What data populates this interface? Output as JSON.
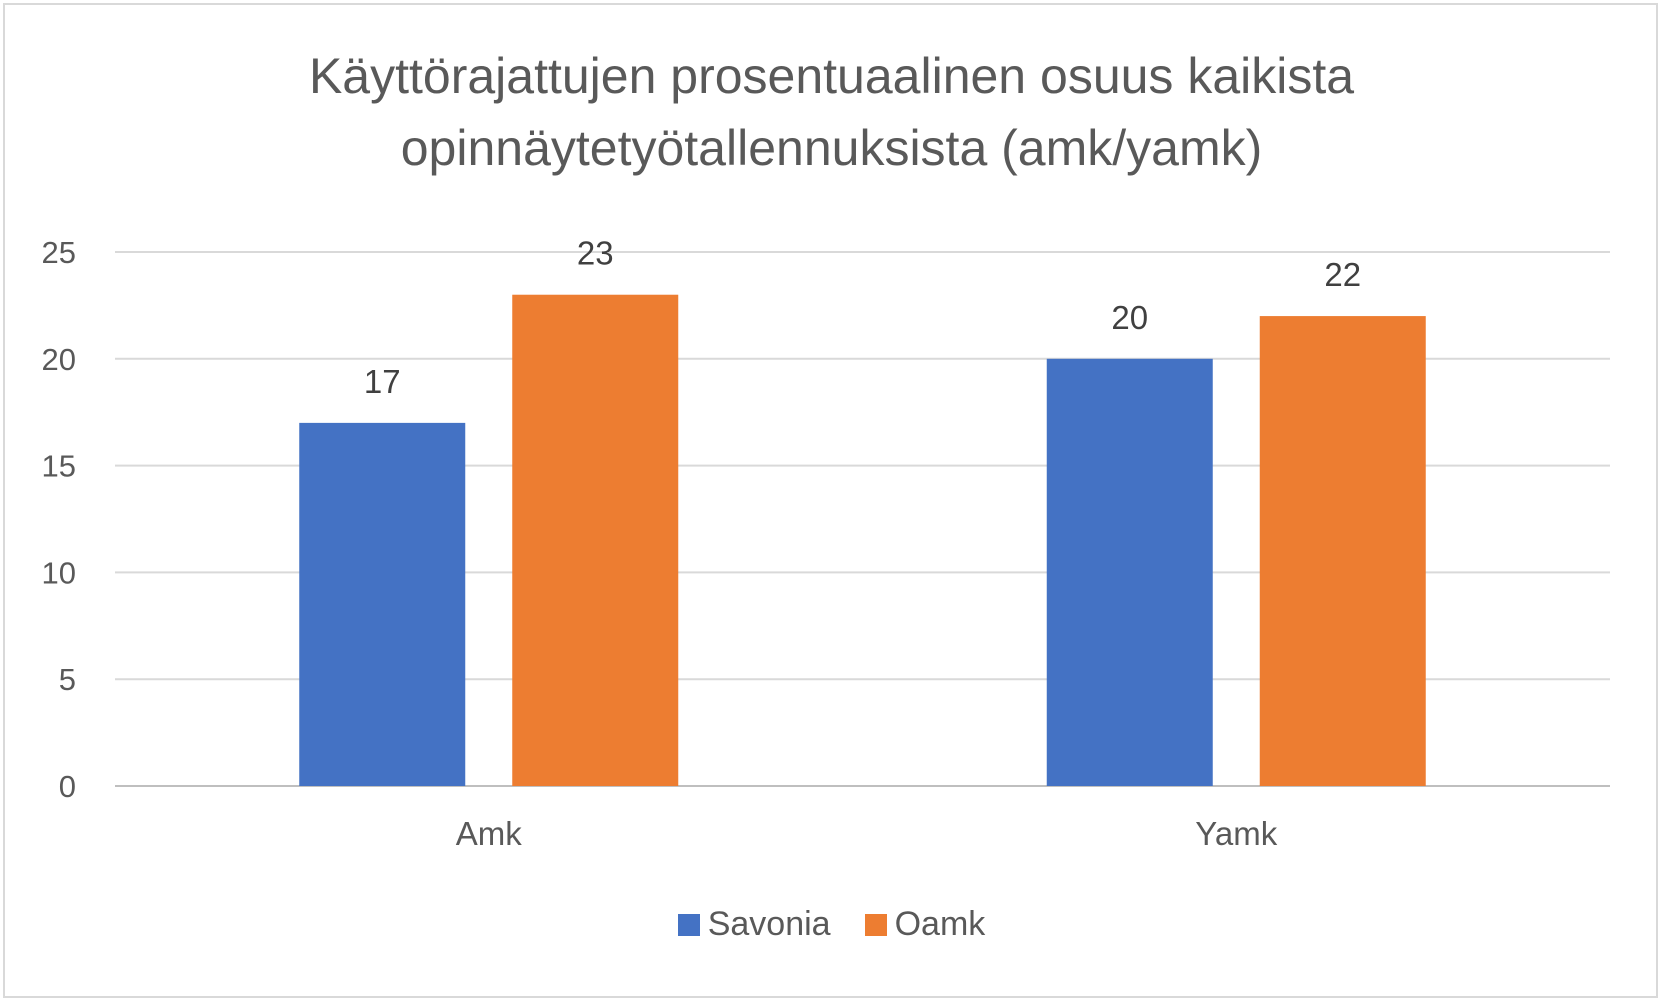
{
  "chart_data": {
    "type": "bar",
    "title": [
      "Käyttörajattujen prosentuaalinen osuus kaikista",
      "opinnäytetyötallennuksista (amk/yamk)"
    ],
    "categories": [
      "Amk",
      "Yamk"
    ],
    "series": [
      {
        "name": "Savonia",
        "color": "#4472c4",
        "values": [
          17,
          20
        ]
      },
      {
        "name": "Oamk",
        "color": "#ed7d31",
        "values": [
          23,
          22
        ]
      }
    ],
    "yticks": [
      "0",
      "5",
      "10",
      "15",
      "20",
      "25"
    ],
    "ylim": [
      0,
      25
    ],
    "grid": true,
    "data_labels": true,
    "legend_position": "bottom"
  }
}
